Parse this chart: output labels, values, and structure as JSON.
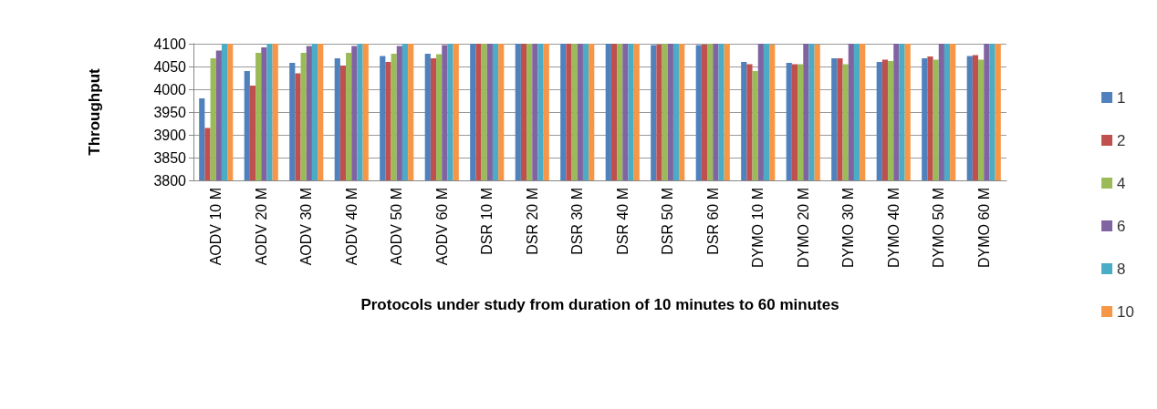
{
  "chart_data": {
    "type": "bar",
    "xlabel": "Protocols under study from duration of 10 minutes to 60 minutes",
    "ylabel": "Throughput",
    "categories": [
      "AODV 10 M",
      "AODV 20 M",
      "AODV 30 M",
      "AODV 40 M",
      "AODV 50 M",
      "AODV 60 M",
      "DSR 10 M",
      "DSR 20 M",
      "DSR 30 M",
      "DSR 40 M",
      "DSR 50 M",
      "DSR 60 M",
      "DYMO 10 M",
      "DYMO 20 M",
      "DYMO 30 M",
      "DYMO 40 M",
      "DYMO 50 M",
      "DYMO 60 M"
    ],
    "series": [
      {
        "name": "1",
        "color": "#4f81bd",
        "values": [
          3980,
          4040,
          4058,
          4068,
          4073,
          4078,
          4100,
          4100,
          4100,
          4100,
          4097,
          4097,
          4060,
          4058,
          4068,
          4060,
          4068,
          4073
        ]
      },
      {
        "name": "2",
        "color": "#c0504d",
        "values": [
          3915,
          4008,
          4035,
          4052,
          4060,
          4068,
          4100,
          4100,
          4100,
          4100,
          4098,
          4098,
          4055,
          4055,
          4068,
          4065,
          4072,
          4075
        ]
      },
      {
        "name": "4",
        "color": "#9bbb59",
        "values": [
          4068,
          4080,
          4080,
          4080,
          4078,
          4077,
          4100,
          4100,
          4100,
          4100,
          4100,
          4100,
          4040,
          4055,
          4055,
          4062,
          4065,
          4065
        ]
      },
      {
        "name": "6",
        "color": "#8064a2",
        "values": [
          4085,
          4092,
          4095,
          4095,
          4095,
          4097,
          4100,
          4100,
          4100,
          4100,
          4100,
          4100,
          4100,
          4100,
          4100,
          4100,
          4100,
          4100
        ]
      },
      {
        "name": "8",
        "color": "#4bacc6",
        "values": [
          4100,
          4100,
          4100,
          4100,
          4100,
          4100,
          4100,
          4100,
          4100,
          4100,
          4100,
          4100,
          4100,
          4100,
          4100,
          4100,
          4100,
          4100
        ]
      },
      {
        "name": "10",
        "color": "#f79646",
        "values": [
          4100,
          4100,
          4100,
          4100,
          4100,
          4100,
          4100,
          4100,
          4100,
          4100,
          4100,
          4100,
          4098,
          4098,
          4100,
          4100,
          4100,
          4100
        ]
      }
    ],
    "ylim": [
      3800,
      4100
    ],
    "yticks": [
      3800,
      3850,
      3900,
      3950,
      4000,
      4050,
      4100
    ],
    "grid": "y",
    "legend": "right"
  }
}
